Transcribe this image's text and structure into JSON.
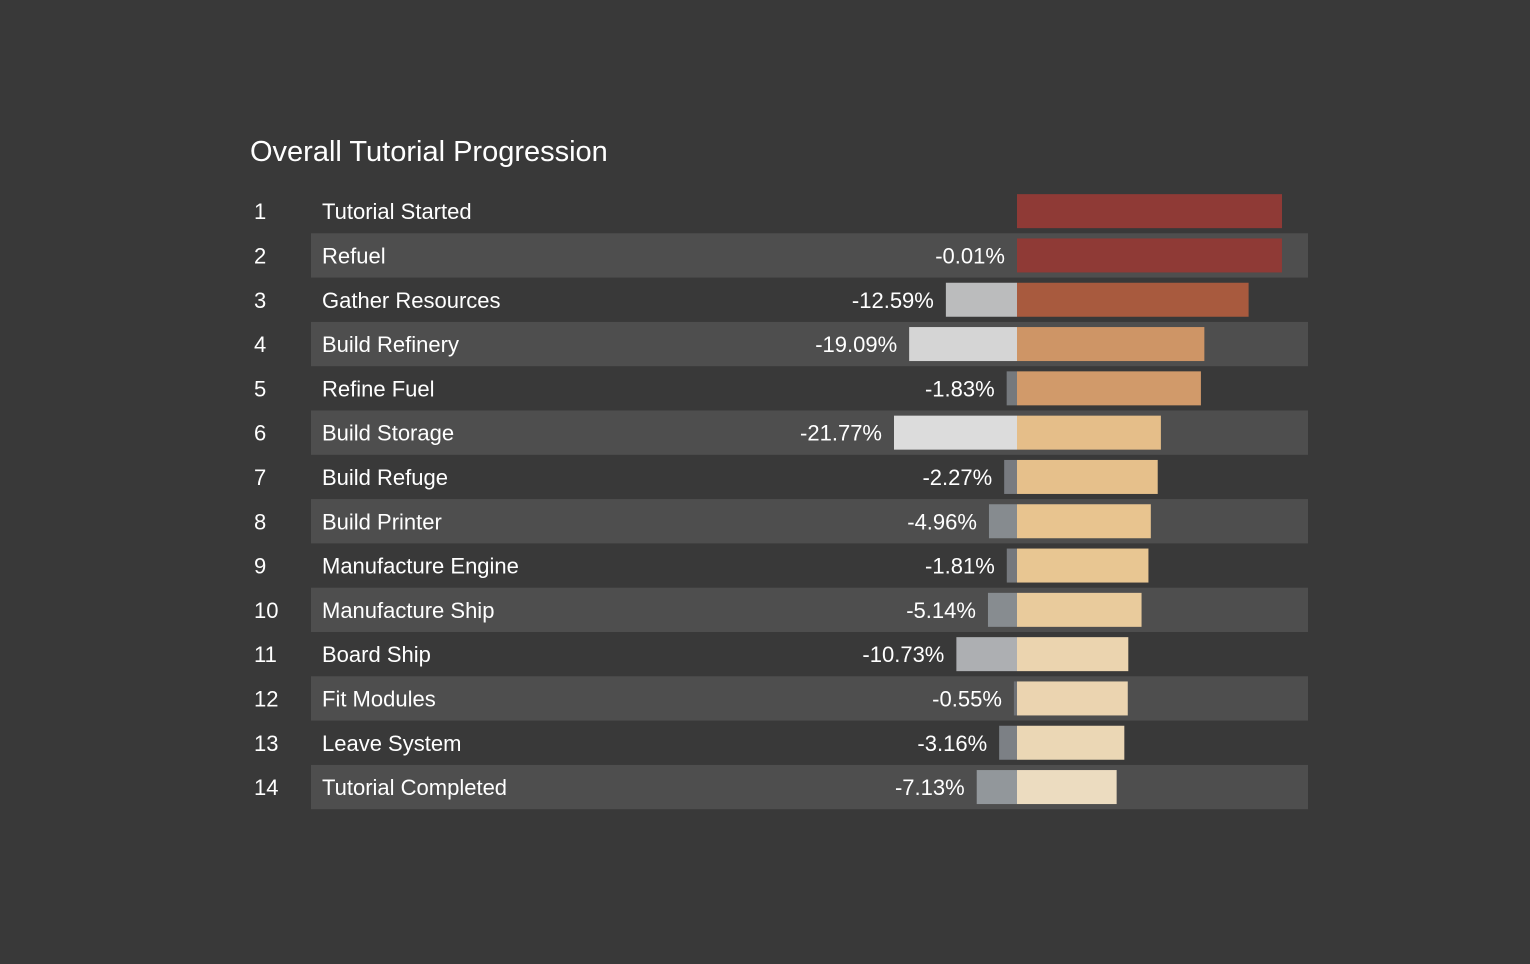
{
  "chart_data": {
    "type": "bar",
    "title": "Overall Tutorial Progression",
    "steps": [
      {
        "index": "1",
        "label": "Tutorial Started",
        "change_label": "",
        "change": 0,
        "value": 100.0
      },
      {
        "index": "2",
        "label": "Refuel",
        "change_label": "-0.01%",
        "change": -0.01,
        "value": 99.99
      },
      {
        "index": "3",
        "label": "Gather Resources",
        "change_label": "-12.59%",
        "change": -12.59,
        "value": 87.4
      },
      {
        "index": "4",
        "label": "Build Refinery",
        "change_label": "-19.09%",
        "change": -19.09,
        "value": 70.7
      },
      {
        "index": "5",
        "label": "Refine Fuel",
        "change_label": "-1.83%",
        "change": -1.83,
        "value": 69.4
      },
      {
        "index": "6",
        "label": "Build Storage",
        "change_label": "-21.77%",
        "change": -21.77,
        "value": 54.3
      },
      {
        "index": "7",
        "label": "Build Refuge",
        "change_label": "-2.27%",
        "change": -2.27,
        "value": 53.1
      },
      {
        "index": "8",
        "label": "Build Printer",
        "change_label": "-4.96%",
        "change": -4.96,
        "value": 50.5
      },
      {
        "index": "9",
        "label": "Manufacture Engine",
        "change_label": "-1.81%",
        "change": -1.81,
        "value": 49.6
      },
      {
        "index": "10",
        "label": "Manufacture Ship",
        "change_label": "-5.14%",
        "change": -5.14,
        "value": 47.0
      },
      {
        "index": "11",
        "label": "Board Ship",
        "change_label": "-10.73%",
        "change": -10.73,
        "value": 42.0
      },
      {
        "index": "12",
        "label": "Fit Modules",
        "change_label": "-0.55%",
        "change": -0.55,
        "value": 41.8
      },
      {
        "index": "13",
        "label": "Leave System",
        "change_label": "-3.16%",
        "change": -3.16,
        "value": 40.5
      },
      {
        "index": "14",
        "label": "Tutorial Completed",
        "change_label": "-7.13%",
        "change": -7.13,
        "value": 37.6
      }
    ],
    "value_range": [
      0,
      100
    ],
    "change_range": [
      -21.77,
      0
    ],
    "colors": {
      "background": "#393939",
      "row_band": "#4e4e4e",
      "text": "#ffffff",
      "bar_gradient": [
        "#8f3a36",
        "#a85a3e",
        "#c4875c",
        "#e0b07a",
        "#e8c590",
        "#ecdcc0"
      ],
      "change_gradient": [
        "#6b6e73",
        "#93989c",
        "#c9c9c9",
        "#dcdcdc"
      ]
    }
  }
}
